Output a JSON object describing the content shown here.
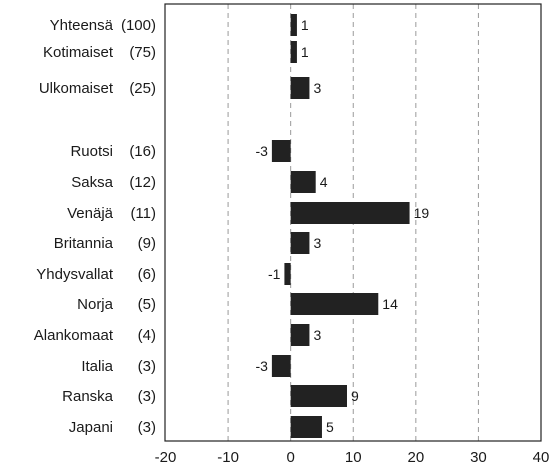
{
  "chart_data": {
    "type": "bar",
    "orientation": "horizontal",
    "categories": [
      {
        "name": "Yhteensä",
        "weight": "(100)"
      },
      {
        "name": "Kotimaiset",
        "weight": "(75)"
      },
      {
        "name": "Ulkomaiset",
        "weight": "(25)"
      },
      {
        "name": "Ruotsi",
        "weight": "(16)"
      },
      {
        "name": "Saksa",
        "weight": "(12)"
      },
      {
        "name": "Venäjä",
        "weight": "(11)"
      },
      {
        "name": "Britannia",
        "weight": "(9)"
      },
      {
        "name": "Yhdysvallat",
        "weight": "(6)"
      },
      {
        "name": "Norja",
        "weight": "(5)"
      },
      {
        "name": "Alankomaat",
        "weight": "(4)"
      },
      {
        "name": "Italia",
        "weight": "(3)"
      },
      {
        "name": "Ranska",
        "weight": "(3)"
      },
      {
        "name": "Japani",
        "weight": "(3)"
      }
    ],
    "values": [
      1,
      1,
      3,
      -3,
      4,
      19,
      3,
      -1,
      14,
      3,
      -3,
      9,
      5
    ],
    "value_labels": [
      "1",
      "1",
      "3",
      "-3",
      "4",
      "19",
      "3",
      "-1",
      "14",
      "3",
      "-3",
      "9",
      "5"
    ],
    "xlim": [
      -20,
      40
    ],
    "xticks": [
      "-20",
      "-10",
      "0",
      "10",
      "20",
      "30",
      "40"
    ],
    "xtick_values": [
      -20,
      -10,
      0,
      10,
      20,
      30,
      40
    ],
    "grid": "vertical dashed",
    "bar_color": "#222222",
    "grid_color": "#9a9a9a"
  }
}
